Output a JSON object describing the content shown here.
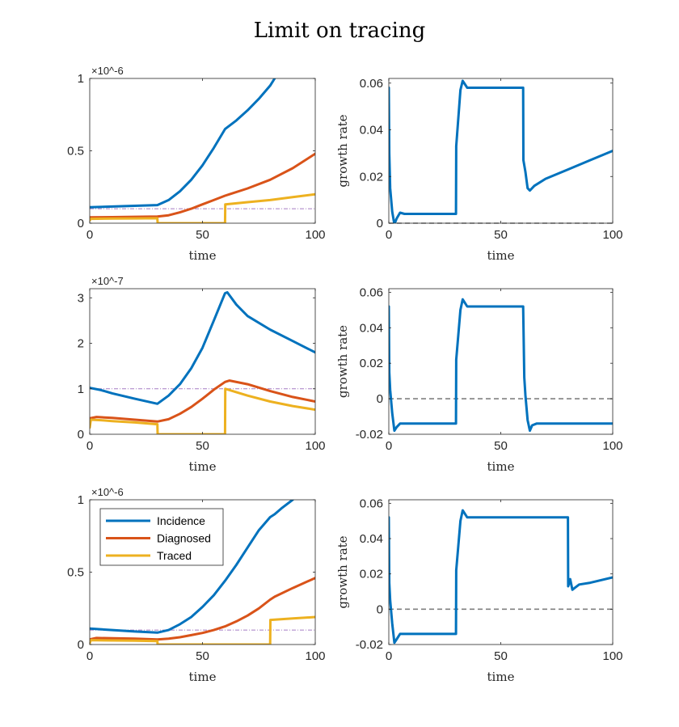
{
  "figure": {
    "title": "Limit on tracing"
  },
  "legend_labels": [
    "Incidence",
    "Diagnosed",
    "Traced"
  ],
  "colors": {
    "incidence": "#0072BD",
    "diagnosed": "#D95319",
    "traced": "#EDB120",
    "threshold": "#A57CC4",
    "zero": "#808080"
  },
  "chart_data": [
    {
      "type": "line",
      "row": 1,
      "col": 1,
      "xlabel": "time",
      "ylabel": "",
      "xlim": [
        0,
        100
      ],
      "ylim": [
        0,
        1e-06
      ],
      "xticks": [
        "0",
        "50",
        "100"
      ],
      "yticks": [
        "0",
        "0.5",
        "1"
      ],
      "exponent_label": "×10^-6",
      "grid": false,
      "threshold": 1e-07,
      "series": [
        {
          "key": "incidence",
          "x": [
            0,
            10,
            20,
            30,
            35,
            40,
            45,
            50,
            55,
            60,
            65,
            70,
            75,
            80,
            82
          ],
          "values": [
            1.1e-07,
            1.15e-07,
            1.2e-07,
            1.25e-07,
            1.6e-07,
            2.2e-07,
            3e-07,
            4e-07,
            5.2e-07,
            6.5e-07,
            7.1e-07,
            7.8e-07,
            8.6e-07,
            9.5e-07,
            1e-06
          ]
        },
        {
          "key": "diagnosed",
          "x": [
            0,
            10,
            20,
            30,
            35,
            40,
            45,
            50,
            55,
            60,
            62,
            70,
            80,
            90,
            100
          ],
          "values": [
            4e-08,
            4.2e-08,
            4.4e-08,
            4.6e-08,
            5.5e-08,
            7.5e-08,
            1e-07,
            1.3e-07,
            1.6e-07,
            1.9e-07,
            2e-07,
            2.4e-07,
            3e-07,
            3.8e-07,
            4.8e-07
          ]
        },
        {
          "key": "traced",
          "x": [
            0,
            0.5,
            10,
            20,
            30,
            30.1,
            60,
            60.1,
            70,
            80,
            90,
            100
          ],
          "values": [
            2e-08,
            3e-08,
            3.2e-08,
            3.3e-08,
            3.4e-08,
            0,
            0,
            1.3e-07,
            1.45e-07,
            1.6e-07,
            1.8e-07,
            2e-07
          ]
        }
      ]
    },
    {
      "type": "line",
      "row": 1,
      "col": 2,
      "xlabel": "time",
      "ylabel": "growth rate",
      "xlim": [
        0,
        100
      ],
      "ylim": [
        0,
        0.062
      ],
      "xticks": [
        "0",
        "50",
        "100"
      ],
      "yticks": [
        "0",
        "0.02",
        "0.04",
        "0.06"
      ],
      "grid": false,
      "series": [
        {
          "key": "incidence",
          "x": [
            0,
            0.2,
            0.6,
            1.5,
            2.5,
            3.5,
            5,
            7,
            10,
            20,
            30,
            30.1,
            32,
            33,
            35,
            40,
            50,
            60,
            60.1,
            61,
            62,
            63,
            65,
            70,
            80,
            90,
            100
          ],
          "values": [
            0.058,
            0.03,
            0.015,
            0.005,
            -0.0005,
            0.002,
            0.0045,
            0.004,
            0.004,
            0.004,
            0.004,
            0.033,
            0.057,
            0.061,
            0.058,
            0.058,
            0.058,
            0.058,
            0.027,
            0.022,
            0.015,
            0.014,
            0.016,
            0.019,
            0.023,
            0.027,
            0.031
          ]
        }
      ]
    },
    {
      "type": "line",
      "row": 2,
      "col": 1,
      "xlabel": "time",
      "ylabel": "",
      "xlim": [
        0,
        100
      ],
      "ylim": [
        0,
        3.2e-07
      ],
      "xticks": [
        "0",
        "50",
        "100"
      ],
      "yticks": [
        "0",
        "1",
        "2",
        "3"
      ],
      "exponent_label": "×10^-7",
      "grid": false,
      "threshold": 1e-07,
      "series": [
        {
          "key": "incidence",
          "x": [
            0,
            5,
            10,
            20,
            30,
            35,
            40,
            45,
            50,
            55,
            60,
            61,
            65,
            70,
            80,
            90,
            100
          ],
          "values": [
            1.02e-07,
            9.7e-08,
            9e-08,
            7.8e-08,
            6.7e-08,
            8.5e-08,
            1.1e-07,
            1.45e-07,
            1.9e-07,
            2.5e-07,
            3.1e-07,
            3.12e-07,
            2.85e-07,
            2.6e-07,
            2.3e-07,
            2.05e-07,
            1.8e-07
          ]
        },
        {
          "key": "diagnosed",
          "x": [
            0,
            3,
            10,
            20,
            30,
            35,
            40,
            45,
            50,
            55,
            60,
            62,
            70,
            80,
            90,
            100
          ],
          "values": [
            3.5e-08,
            3.8e-08,
            3.6e-08,
            3.2e-08,
            2.8e-08,
            3.3e-08,
            4.5e-08,
            6e-08,
            7.8e-08,
            9.8e-08,
            1.15e-07,
            1.18e-07,
            1.1e-07,
            9.5e-08,
            8.2e-08,
            7.2e-08
          ]
        },
        {
          "key": "traced",
          "x": [
            0,
            0.5,
            5,
            10,
            20,
            30,
            30.1,
            60,
            60.1,
            70,
            80,
            90,
            100
          ],
          "values": [
            1.5e-08,
            3.2e-08,
            3.1e-08,
            2.9e-08,
            2.6e-08,
            2.2e-08,
            0,
            0,
            1e-07,
            8.5e-08,
            7.2e-08,
            6.2e-08,
            5.4e-08
          ]
        }
      ]
    },
    {
      "type": "line",
      "row": 2,
      "col": 2,
      "xlabel": "time",
      "ylabel": "growth rate",
      "xlim": [
        0,
        100
      ],
      "ylim": [
        -0.02,
        0.062
      ],
      "xticks": [
        "0",
        "50",
        "100"
      ],
      "yticks": [
        "-0.02",
        "0",
        "0.02",
        "0.04",
        "0.06"
      ],
      "grid": false,
      "series": [
        {
          "key": "incidence",
          "x": [
            0,
            0.2,
            0.6,
            1.5,
            2.5,
            3.5,
            5,
            7,
            10,
            20,
            30,
            30.1,
            32,
            33,
            35,
            40,
            50,
            60,
            60.5,
            61,
            62,
            63,
            64,
            66,
            70,
            80,
            90,
            100
          ],
          "values": [
            0.052,
            0.015,
            0.005,
            -0.008,
            -0.018,
            -0.016,
            -0.014,
            -0.014,
            -0.014,
            -0.014,
            -0.014,
            0.022,
            0.05,
            0.056,
            0.052,
            0.052,
            0.052,
            0.052,
            0.012,
            0.002,
            -0.012,
            -0.018,
            -0.015,
            -0.014,
            -0.014,
            -0.014,
            -0.014,
            -0.014
          ]
        }
      ]
    },
    {
      "type": "line",
      "row": 3,
      "col": 1,
      "xlabel": "time",
      "ylabel": "",
      "xlim": [
        0,
        100
      ],
      "ylim": [
        0,
        1e-06
      ],
      "xticks": [
        "0",
        "50",
        "100"
      ],
      "yticks": [
        "0",
        "0.5",
        "1"
      ],
      "exponent_label": "×10^-6",
      "grid": false,
      "threshold": 1e-07,
      "legend": {
        "location": "top-left",
        "entries": [
          "Incidence",
          "Diagnosed",
          "Traced"
        ]
      },
      "series": [
        {
          "key": "incidence",
          "x": [
            0,
            10,
            20,
            30,
            35,
            40,
            45,
            50,
            55,
            60,
            65,
            70,
            75,
            80,
            82,
            85,
            90
          ],
          "values": [
            1.1e-07,
            1e-07,
            9e-08,
            8.2e-08,
            1e-07,
            1.4e-07,
            1.9e-07,
            2.6e-07,
            3.4e-07,
            4.4e-07,
            5.5e-07,
            6.7e-07,
            7.9e-07,
            8.8e-07,
            9e-07,
            9.4e-07,
            1e-06
          ]
        },
        {
          "key": "diagnosed",
          "x": [
            0,
            3,
            10,
            20,
            30,
            35,
            40,
            45,
            50,
            55,
            60,
            65,
            70,
            75,
            80,
            82,
            90,
            100
          ],
          "values": [
            3.5e-08,
            4.5e-08,
            4.3e-08,
            4e-08,
            3.5e-08,
            4e-08,
            5e-08,
            6.5e-08,
            8e-08,
            1e-07,
            1.25e-07,
            1.6e-07,
            2e-07,
            2.5e-07,
            3.1e-07,
            3.3e-07,
            3.9e-07,
            4.6e-07
          ]
        },
        {
          "key": "traced",
          "x": [
            0,
            0.5,
            10,
            20,
            30,
            30.1,
            80,
            80.1,
            90,
            100
          ],
          "values": [
            1e-08,
            3e-08,
            2.8e-08,
            2.6e-08,
            2.4e-08,
            0,
            0,
            1.7e-07,
            1.8e-07,
            1.9e-07
          ]
        }
      ]
    },
    {
      "type": "line",
      "row": 3,
      "col": 2,
      "xlabel": "time",
      "ylabel": "growth rate",
      "xlim": [
        0,
        100
      ],
      "ylim": [
        -0.02,
        0.062
      ],
      "xticks": [
        "0",
        "50",
        "100"
      ],
      "yticks": [
        "-0.02",
        "0",
        "0.02",
        "0.04",
        "0.06"
      ],
      "grid": false,
      "series": [
        {
          "key": "incidence",
          "x": [
            0,
            0.2,
            0.6,
            1.5,
            2.5,
            3.5,
            5,
            7,
            10,
            20,
            30,
            30.1,
            32,
            33,
            35,
            40,
            50,
            60,
            70,
            80,
            80.1,
            81,
            82,
            83,
            85,
            90,
            100
          ],
          "values": [
            0.052,
            0.015,
            0.005,
            -0.008,
            -0.019,
            -0.017,
            -0.014,
            -0.014,
            -0.014,
            -0.014,
            -0.014,
            0.022,
            0.05,
            0.056,
            0.052,
            0.052,
            0.052,
            0.052,
            0.052,
            0.052,
            0.013,
            0.017,
            0.011,
            0.012,
            0.014,
            0.015,
            0.018
          ]
        }
      ]
    }
  ]
}
